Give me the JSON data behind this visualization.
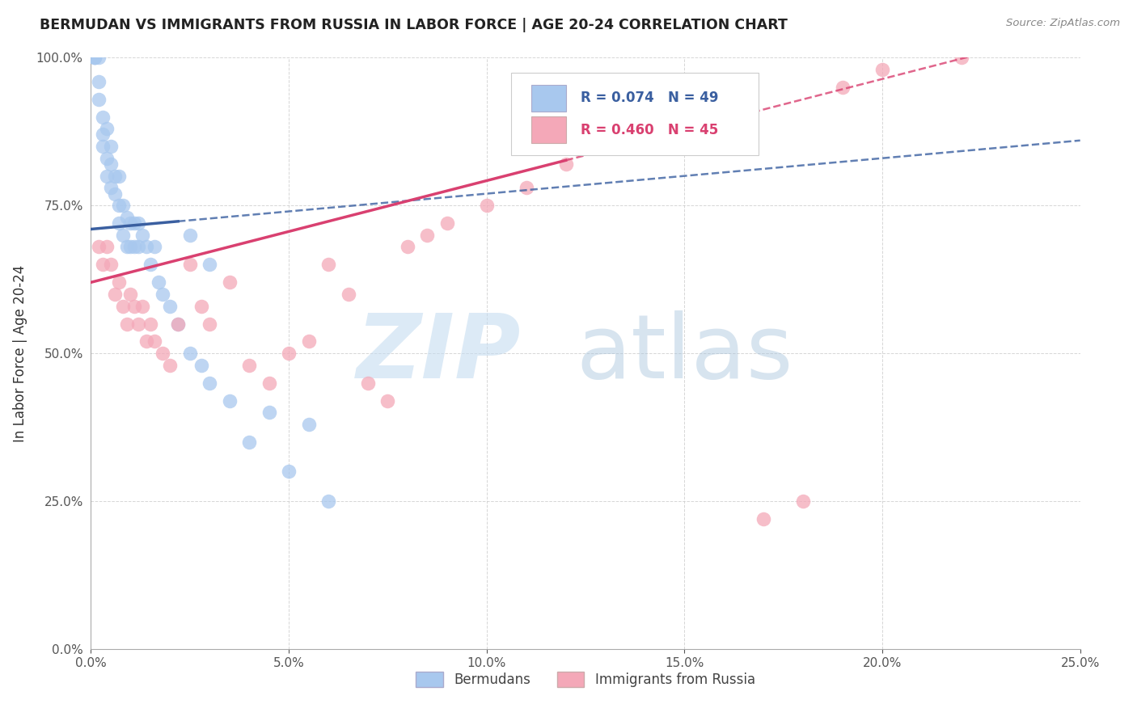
{
  "title": "BERMUDAN VS IMMIGRANTS FROM RUSSIA IN LABOR FORCE | AGE 20-24 CORRELATION CHART",
  "source": "Source: ZipAtlas.com",
  "ylabel": "In Labor Force | Age 20-24",
  "r_blue": 0.074,
  "n_blue": 49,
  "r_pink": 0.46,
  "n_pink": 45,
  "xlim": [
    0.0,
    0.25
  ],
  "ylim": [
    0.0,
    1.0
  ],
  "xticks": [
    0.0,
    0.05,
    0.1,
    0.15,
    0.2,
    0.25
  ],
  "yticks": [
    0.0,
    0.25,
    0.5,
    0.75,
    1.0
  ],
  "xtick_labels": [
    "0.0%",
    "5.0%",
    "10.0%",
    "15.0%",
    "20.0%",
    "25.0%"
  ],
  "ytick_labels": [
    "0.0%",
    "25.0%",
    "50.0%",
    "75.0%",
    "100.0%"
  ],
  "blue_color": "#A8C8EE",
  "pink_color": "#F4A8B8",
  "blue_line_color": "#3A5FA0",
  "pink_line_color": "#D94070",
  "blue_scatter_x": [
    0.001,
    0.001,
    0.001,
    0.002,
    0.002,
    0.002,
    0.003,
    0.003,
    0.003,
    0.004,
    0.004,
    0.004,
    0.005,
    0.005,
    0.005,
    0.006,
    0.006,
    0.007,
    0.007,
    0.007,
    0.008,
    0.008,
    0.009,
    0.009,
    0.01,
    0.01,
    0.011,
    0.011,
    0.012,
    0.012,
    0.013,
    0.014,
    0.015,
    0.016,
    0.017,
    0.018,
    0.02,
    0.022,
    0.025,
    0.028,
    0.03,
    0.035,
    0.04,
    0.05,
    0.06,
    0.025,
    0.03,
    0.045,
    0.055
  ],
  "blue_scatter_y": [
    1.0,
    1.0,
    1.0,
    1.0,
    0.96,
    0.93,
    0.9,
    0.87,
    0.85,
    0.88,
    0.83,
    0.8,
    0.85,
    0.82,
    0.78,
    0.8,
    0.77,
    0.8,
    0.75,
    0.72,
    0.75,
    0.7,
    0.73,
    0.68,
    0.72,
    0.68,
    0.72,
    0.68,
    0.72,
    0.68,
    0.7,
    0.68,
    0.65,
    0.68,
    0.62,
    0.6,
    0.58,
    0.55,
    0.5,
    0.48,
    0.45,
    0.42,
    0.35,
    0.3,
    0.25,
    0.7,
    0.65,
    0.4,
    0.38
  ],
  "pink_scatter_x": [
    0.002,
    0.003,
    0.004,
    0.005,
    0.006,
    0.007,
    0.008,
    0.009,
    0.01,
    0.011,
    0.012,
    0.013,
    0.014,
    0.015,
    0.016,
    0.018,
    0.02,
    0.022,
    0.025,
    0.028,
    0.03,
    0.035,
    0.04,
    0.045,
    0.05,
    0.055,
    0.06,
    0.065,
    0.07,
    0.075,
    0.08,
    0.085,
    0.09,
    0.1,
    0.11,
    0.12,
    0.13,
    0.14,
    0.15,
    0.16,
    0.17,
    0.18,
    0.19,
    0.2,
    0.22
  ],
  "pink_scatter_y": [
    0.68,
    0.65,
    0.68,
    0.65,
    0.6,
    0.62,
    0.58,
    0.55,
    0.6,
    0.58,
    0.55,
    0.58,
    0.52,
    0.55,
    0.52,
    0.5,
    0.48,
    0.55,
    0.65,
    0.58,
    0.55,
    0.62,
    0.48,
    0.45,
    0.5,
    0.52,
    0.65,
    0.6,
    0.45,
    0.42,
    0.68,
    0.7,
    0.72,
    0.75,
    0.78,
    0.82,
    0.85,
    0.88,
    0.9,
    0.92,
    0.22,
    0.25,
    0.95,
    0.98,
    1.0
  ],
  "blue_line_intercept": 0.71,
  "blue_line_slope": 0.6,
  "pink_line_intercept": 0.62,
  "pink_line_slope": 1.72
}
